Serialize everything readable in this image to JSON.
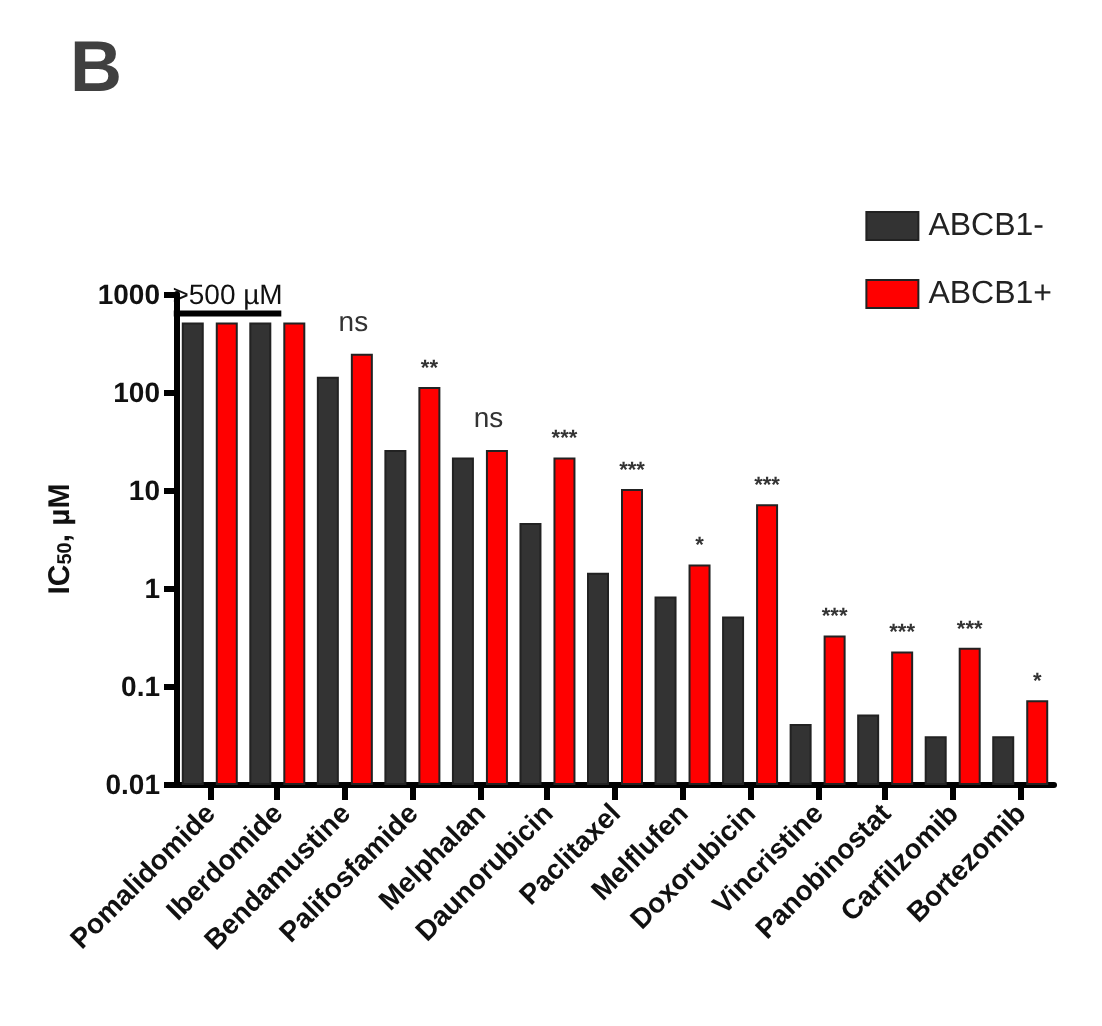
{
  "chart_data": {
    "type": "bar",
    "title": "B",
    "ylabel": "IC$_{50}$, µM",
    "categories": [
      "Pomalidomide",
      "Iberdomide",
      "Bendamustine",
      "Palifosfamide",
      "Melphalan",
      "Daunorubicin",
      "Paclitaxel",
      "Melflufen",
      "Doxorubicin",
      "Vincristine",
      "Panobinostat",
      "Carfilzomib",
      "Bortezomib"
    ],
    "series": [
      {
        "name": "ABCB1-",
        "color": "#333333",
        "values": [
          500,
          500,
          140,
          25,
          21,
          4.5,
          1.4,
          0.8,
          0.5,
          0.04,
          0.05,
          0.03,
          0.03
        ]
      },
      {
        "name": "ABCB1+",
        "color": "#ff0000",
        "values": [
          500,
          500,
          240,
          110,
          25,
          21,
          10,
          1.7,
          7,
          0.32,
          0.22,
          0.24,
          0.07
        ]
      }
    ],
    "log": "y",
    "ylim": [
      0.01,
      1000
    ],
    "yticks": [
      0.01,
      0.1,
      1,
      10,
      100,
      1000
    ],
    "grid": false,
    "legend": "top right",
    "annotations": [
      {
        "text": ">500 µM",
        "x": "Pomalidomide",
        "y": 500
      },
      {
        "text": "ns",
        "x": "Bendamustine",
        "y": 240
      },
      {
        "text": "**",
        "x": "Palifosfamide",
        "y": 110
      },
      {
        "text": "ns",
        "x": "Melphalan",
        "y": 25
      },
      {
        "text": "***",
        "x": "Daunorubicin",
        "y": 21
      },
      {
        "text": "***",
        "x": "Paclitaxel",
        "y": 10
      },
      {
        "text": "*",
        "x": "Melflufen",
        "y": 1.7
      },
      {
        "text": "***",
        "x": "Doxorubicin",
        "y": 7
      },
      {
        "text": "***",
        "x": "Vincristine",
        "y": 0.32
      },
      {
        "text": "***",
        "x": "Panobinostat",
        "y": 0.22
      },
      {
        "text": "***",
        "x": "Carfilzomib",
        "y": 0.24
      },
      {
        "text": "*",
        "x": "Bortezomib",
        "y": 0.07
      }
    ]
  }
}
